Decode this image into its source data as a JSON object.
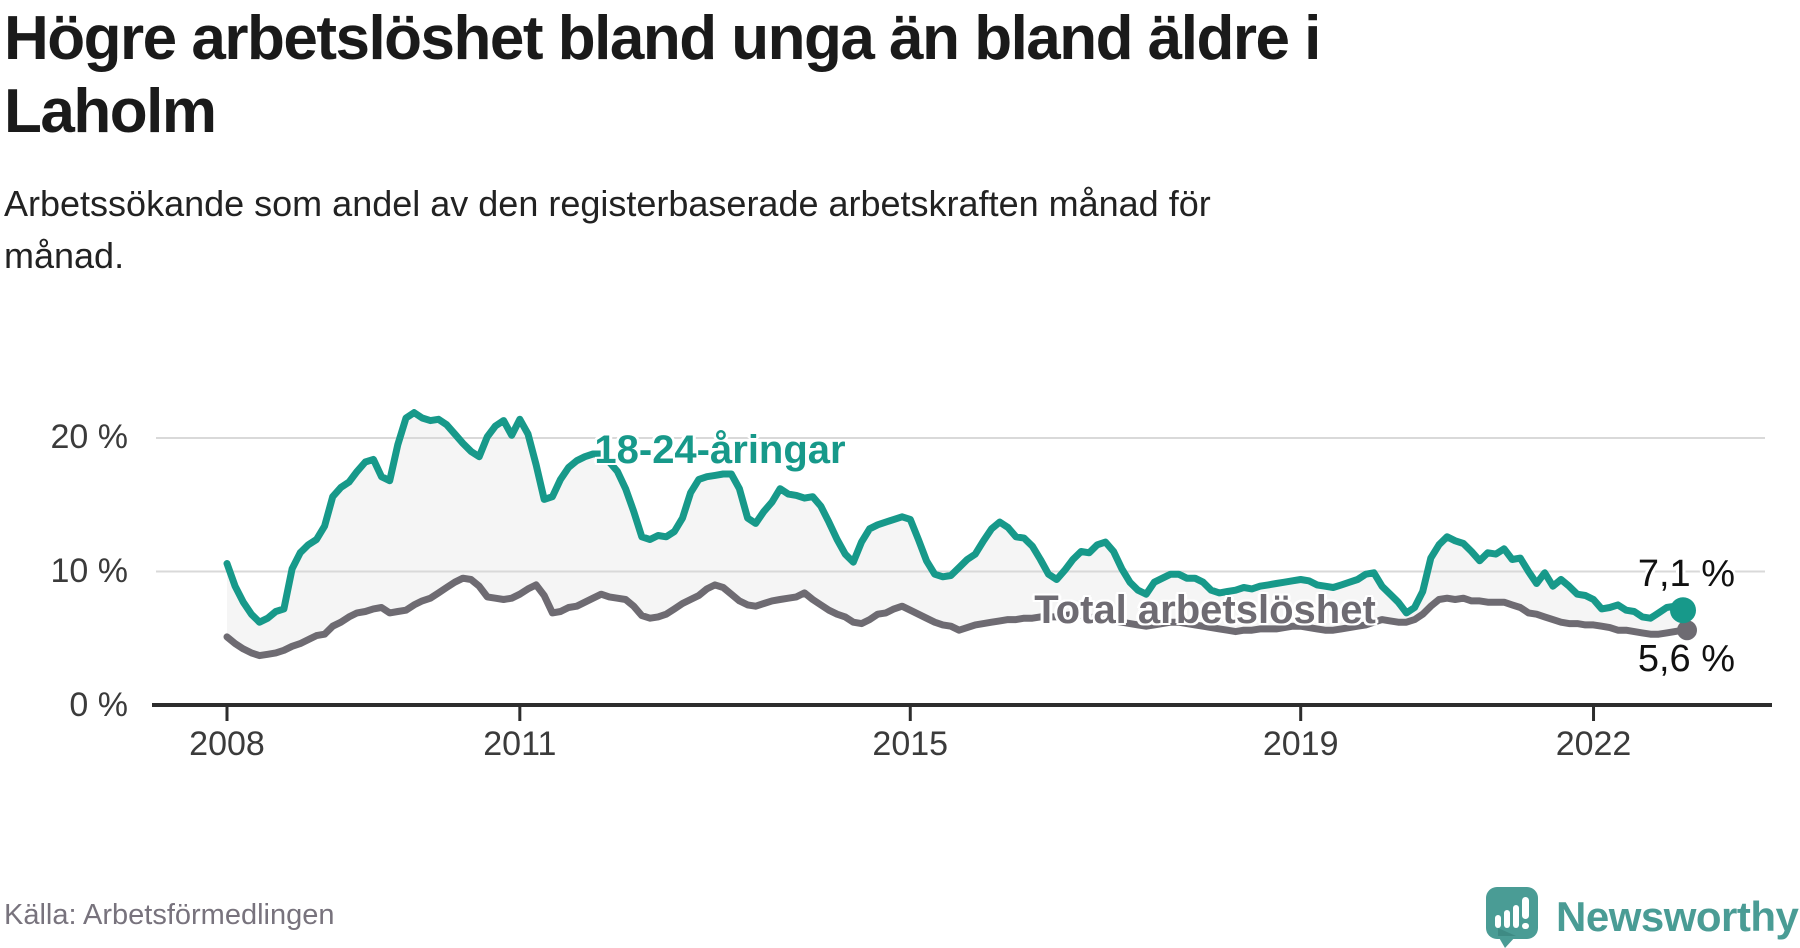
{
  "header": {
    "title_line1": "Högre arbetslöshet bland unga än bland äldre i",
    "title_line2": "Laholm",
    "subtitle_line1": "Arbetssökande som andel av den registerbaserade arbetskraften månad för",
    "subtitle_line2": "månad."
  },
  "footer": {
    "source": "Källa: Arbetsförmedlingen",
    "brand_name": "Newsworthy"
  },
  "colors": {
    "youth": "#17998a",
    "total": "#6e6b72",
    "area": "#f5f5f5",
    "grid": "#d9d9d9",
    "axis": "#2d2d2d",
    "tick_label": "#3b3b3b",
    "brand": "#4a9c95"
  },
  "chart_data": {
    "type": "line",
    "title": "Högre arbetslöshet bland unga än bland äldre i Laholm",
    "ylabel": "",
    "xlabel": "",
    "x_unit": "month",
    "x_start_month": "2008-01",
    "x_end_month": "2022-12",
    "ylim": [
      0,
      22.5
    ],
    "grid": "horizontal",
    "area_between_series": true,
    "x_tick_labels": [
      "2008",
      "2011",
      "2015",
      "2019",
      "2022"
    ],
    "x_tick_month_index": [
      0,
      36,
      84,
      132,
      168
    ],
    "y_tick_labels": [
      "20 %",
      "10 %",
      "0 %"
    ],
    "y_tick_values": [
      20,
      10,
      0
    ],
    "series": [
      {
        "name": "18-24-åringar",
        "color": "#17998a",
        "end_label": "7,1 %",
        "end_value": 7.1,
        "values": [
          10.6,
          8.9,
          7.7,
          6.8,
          6.2,
          6.5,
          7.0,
          7.2,
          10.2,
          11.4,
          12.0,
          12.4,
          13.4,
          15.6,
          16.3,
          16.7,
          17.5,
          18.2,
          18.4,
          17.1,
          16.8,
          19.5,
          21.5,
          21.9,
          21.5,
          21.3,
          21.4,
          21.0,
          20.3,
          19.6,
          19.0,
          18.6,
          20.1,
          20.9,
          21.3,
          20.2,
          21.4,
          20.3,
          18.0,
          15.4,
          15.6,
          16.9,
          17.8,
          18.3,
          18.6,
          18.8,
          18.8,
          18.2,
          17.5,
          16.2,
          14.5,
          12.6,
          12.4,
          12.7,
          12.6,
          13.0,
          14.0,
          15.9,
          16.9,
          17.1,
          17.2,
          17.3,
          17.3,
          16.2,
          14.0,
          13.6,
          14.5,
          15.2,
          16.2,
          15.8,
          15.7,
          15.5,
          15.6,
          14.9,
          13.7,
          12.4,
          11.3,
          10.7,
          12.2,
          13.2,
          13.5,
          13.7,
          13.9,
          14.1,
          13.9,
          12.4,
          10.8,
          9.8,
          9.6,
          9.7,
          10.3,
          10.9,
          11.3,
          12.3,
          13.2,
          13.7,
          13.3,
          12.6,
          12.5,
          11.9,
          10.9,
          9.8,
          9.4,
          10.1,
          10.9,
          11.5,
          11.4,
          12.0,
          12.2,
          11.5,
          10.2,
          9.2,
          8.6,
          8.3,
          9.2,
          9.5,
          9.8,
          9.8,
          9.5,
          9.5,
          9.2,
          8.6,
          8.4,
          8.5,
          8.6,
          8.8,
          8.7,
          8.9,
          9.0,
          9.1,
          9.2,
          9.3,
          9.4,
          9.3,
          9.0,
          8.9,
          8.8,
          9.0,
          9.2,
          9.4,
          9.8,
          9.9,
          8.9,
          8.3,
          7.7,
          6.9,
          7.3,
          8.5,
          11.0,
          12.0,
          12.6,
          12.3,
          12.1,
          11.5,
          10.8,
          11.4,
          11.3,
          11.7,
          10.9,
          11.0,
          10.0,
          9.1,
          9.9,
          8.9,
          9.4,
          8.9,
          8.3,
          8.2,
          7.9,
          7.2,
          7.3,
          7.5,
          7.1,
          7.0,
          6.6,
          6.5,
          6.9,
          7.3,
          7.4,
          7.1
        ]
      },
      {
        "name": "Total arbetslöshet",
        "color": "#6e6b72",
        "end_label": "5,6 %",
        "end_value": 5.6,
        "values": [
          5.1,
          4.6,
          4.2,
          3.9,
          3.7,
          3.8,
          3.9,
          4.1,
          4.4,
          4.6,
          4.9,
          5.2,
          5.3,
          5.9,
          6.2,
          6.6,
          6.9,
          7.0,
          7.2,
          7.3,
          6.9,
          7.0,
          7.1,
          7.5,
          7.8,
          8.0,
          8.4,
          8.8,
          9.2,
          9.5,
          9.4,
          8.9,
          8.1,
          8.0,
          7.9,
          8.0,
          8.3,
          8.7,
          9.0,
          8.2,
          6.9,
          7.0,
          7.3,
          7.4,
          7.7,
          8.0,
          8.3,
          8.1,
          8.0,
          7.9,
          7.4,
          6.7,
          6.5,
          6.6,
          6.8,
          7.2,
          7.6,
          7.9,
          8.2,
          8.7,
          9.0,
          8.8,
          8.3,
          7.8,
          7.5,
          7.4,
          7.6,
          7.8,
          7.9,
          8.0,
          8.1,
          8.4,
          7.9,
          7.5,
          7.1,
          6.8,
          6.6,
          6.2,
          6.1,
          6.4,
          6.8,
          6.9,
          7.2,
          7.4,
          7.1,
          6.8,
          6.5,
          6.2,
          6.0,
          5.9,
          5.6,
          5.8,
          6.0,
          6.1,
          6.2,
          6.3,
          6.4,
          6.4,
          6.5,
          6.5,
          6.6,
          6.6,
          6.6,
          6.7,
          6.8,
          6.7,
          6.6,
          6.5,
          6.4,
          6.3,
          6.2,
          6.1,
          6.0,
          5.9,
          6.0,
          6.1,
          6.2,
          6.2,
          6.1,
          6.0,
          5.9,
          5.8,
          5.7,
          5.6,
          5.5,
          5.6,
          5.6,
          5.7,
          5.7,
          5.7,
          5.8,
          5.9,
          5.9,
          5.8,
          5.7,
          5.6,
          5.6,
          5.7,
          5.8,
          5.9,
          6.0,
          6.2,
          6.4,
          6.3,
          6.2,
          6.2,
          6.4,
          6.8,
          7.4,
          7.9,
          8.0,
          7.9,
          8.0,
          7.8,
          7.8,
          7.7,
          7.7,
          7.7,
          7.5,
          7.3,
          6.9,
          6.8,
          6.6,
          6.4,
          6.2,
          6.1,
          6.1,
          6.0,
          6.0,
          5.9,
          5.8,
          5.6,
          5.6,
          5.5,
          5.4,
          5.3,
          5.3,
          5.4,
          5.5,
          5.6
        ]
      }
    ]
  }
}
